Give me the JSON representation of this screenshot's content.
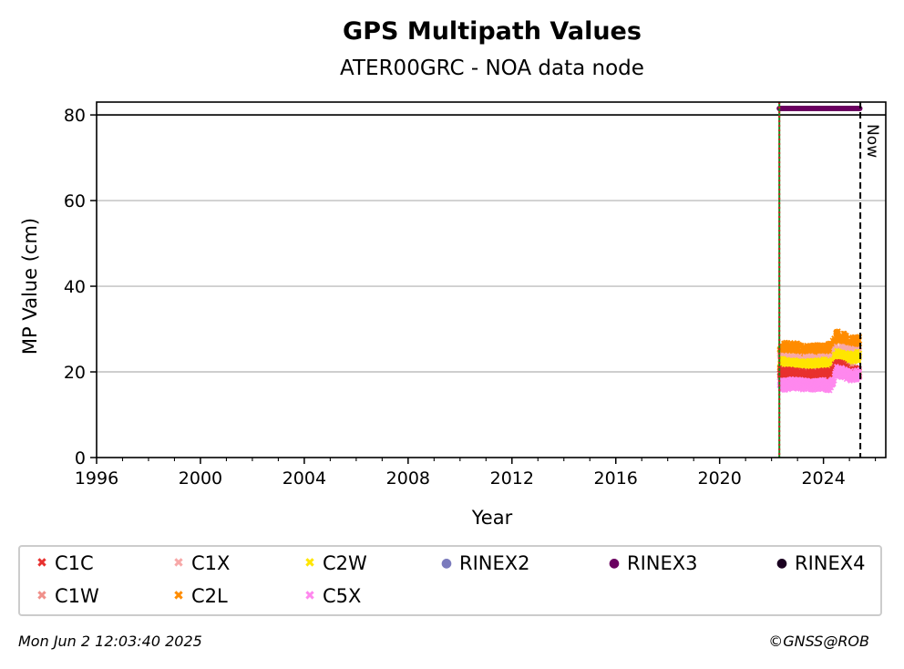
{
  "chart_data": {
    "type": "scatter",
    "title": "GPS Multipath Values",
    "subtitle": "ATER00GRC - NOA data node",
    "xlabel": "Year",
    "ylabel": "MP Value (cm)",
    "xlim": [
      1996,
      2026.4
    ],
    "ylim": [
      0,
      83
    ],
    "xticks": [
      1996,
      2000,
      2004,
      2008,
      2012,
      2016,
      2020,
      2024
    ],
    "yticks": [
      0,
      20,
      40,
      60,
      80
    ],
    "grid": "y-major",
    "reference_line_y": 80,
    "now_label": "Now",
    "now_x": 2025.42,
    "start_x": 2022.3,
    "series": [
      {
        "name": "C1C",
        "marker": "x",
        "color": "#e8312f",
        "x_range": [
          2022.3,
          2025.4
        ],
        "y_mean": 19.5,
        "segments": [
          [
            2022.3,
            19.8
          ],
          [
            2023.0,
            19.2
          ],
          [
            2023.6,
            19.0
          ],
          [
            2024.3,
            19.4
          ],
          [
            2024.5,
            21.5
          ],
          [
            2024.8,
            20.8
          ],
          [
            2025.0,
            19.6
          ],
          [
            2025.4,
            19.9
          ]
        ]
      },
      {
        "name": "C1W",
        "marker": "x",
        "color": "#f0908a",
        "x_range": [
          2022.3,
          2025.4
        ],
        "y_mean": 19.2,
        "segments": [
          [
            2022.3,
            19.5
          ],
          [
            2023.0,
            19.0
          ],
          [
            2024.3,
            19.2
          ],
          [
            2024.5,
            21.0
          ],
          [
            2025.4,
            19.8
          ]
        ]
      },
      {
        "name": "C1X",
        "marker": "x",
        "color": "#f7a8a8",
        "x_range": [
          2022.3,
          2025.4
        ],
        "y_mean": 22.5,
        "segments": [
          [
            2022.3,
            22.8
          ],
          [
            2023.0,
            22.5
          ],
          [
            2024.3,
            22.6
          ],
          [
            2024.5,
            25.0
          ],
          [
            2025.4,
            24.0
          ]
        ]
      },
      {
        "name": "C2L",
        "marker": "x",
        "color": "#ff8c00",
        "x_range": [
          2022.3,
          2025.4
        ],
        "y_mean": 25.5,
        "segments": [
          [
            2022.3,
            25.2
          ],
          [
            2022.6,
            25.8
          ],
          [
            2023.0,
            25.5
          ],
          [
            2023.5,
            25.0
          ],
          [
            2024.0,
            25.3
          ],
          [
            2024.3,
            25.6
          ],
          [
            2024.5,
            28.5
          ],
          [
            2024.8,
            27.8
          ],
          [
            2025.0,
            27.0
          ],
          [
            2025.4,
            27.6
          ]
        ]
      },
      {
        "name": "C2W",
        "marker": "x",
        "color": "#ffe600",
        "x_range": [
          2022.3,
          2025.4
        ],
        "y_mean": 22.0,
        "segments": [
          [
            2022.3,
            22.0
          ],
          [
            2022.8,
            21.6
          ],
          [
            2023.4,
            21.4
          ],
          [
            2024.0,
            21.8
          ],
          [
            2024.3,
            21.5
          ],
          [
            2024.5,
            23.8
          ],
          [
            2025.0,
            23.2
          ],
          [
            2025.4,
            23.6
          ]
        ]
      },
      {
        "name": "C5X",
        "marker": "x",
        "color": "#ff88ee",
        "x_range": [
          2022.3,
          2025.4
        ],
        "y_mean": 17.0,
        "segments": [
          [
            2022.3,
            16.8
          ],
          [
            2022.8,
            17.2
          ],
          [
            2023.4,
            16.9
          ],
          [
            2024.0,
            17.0
          ],
          [
            2024.3,
            16.8
          ],
          [
            2024.5,
            20.2
          ],
          [
            2024.8,
            19.8
          ],
          [
            2025.0,
            19.0
          ],
          [
            2025.4,
            19.4
          ]
        ]
      },
      {
        "name": "RINEX2",
        "marker": "o",
        "color": "#7b7bbd",
        "x_range": [],
        "y": null
      },
      {
        "name": "RINEX3",
        "marker": "o",
        "color": "#6a0060",
        "x_range": [
          2022.3,
          2025.4
        ],
        "y": 81.5
      },
      {
        "name": "RINEX4",
        "marker": "o",
        "color": "#1a0020",
        "x_range": [],
        "y": null
      }
    ],
    "legend_placement": "bottom-outside"
  },
  "legend": {
    "items": [
      {
        "label": "C1C",
        "color": "#e8312f",
        "glyph": "✖"
      },
      {
        "label": "C1W",
        "color": "#f0908a",
        "glyph": "✖"
      },
      {
        "label": "C1X",
        "color": "#f7a8a8",
        "glyph": "✖"
      },
      {
        "label": "C2L",
        "color": "#ff8c00",
        "glyph": "✖"
      },
      {
        "label": "C2W",
        "color": "#ffe600",
        "glyph": "✖"
      },
      {
        "label": "C5X",
        "color": "#ff88ee",
        "glyph": "✖"
      },
      {
        "label": "RINEX2",
        "color": "#7b7bbd",
        "glyph": "●"
      },
      {
        "label": "RINEX3",
        "color": "#6a0060",
        "glyph": "●"
      },
      {
        "label": "RINEX4",
        "color": "#1a0020",
        "glyph": "●"
      }
    ]
  },
  "footer": {
    "timestamp": "Mon Jun  2 12:03:40 2025",
    "credit": "©GNSS@ROB"
  }
}
